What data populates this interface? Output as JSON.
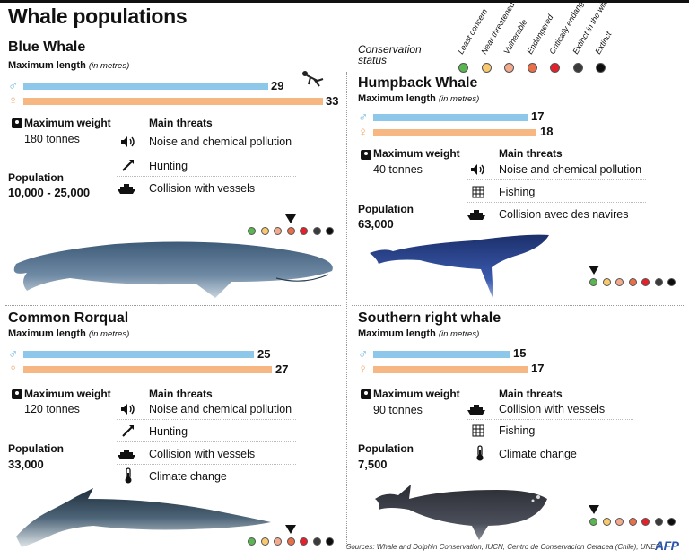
{
  "title": "Whale populations",
  "conservation": {
    "label": "Conservation status",
    "levels": [
      {
        "label": "Least concern",
        "color": "#5ab651"
      },
      {
        "label": "Near threatened",
        "color": "#f9c970"
      },
      {
        "label": "Vulnerable",
        "color": "#f3a98c"
      },
      {
        "label": "Endangered",
        "color": "#e96f4b"
      },
      {
        "label": "Critically endangered",
        "color": "#e5202a"
      },
      {
        "label": "Extinct in the wild",
        "color": "#3b3b3b"
      },
      {
        "label": "Extinct",
        "color": "#0d0d0d"
      }
    ]
  },
  "common": {
    "max_length": "Maximum length",
    "in_metres": "(in metres)",
    "max_weight": "Maximum weight",
    "main_threats": "Main threats",
    "population": "Population",
    "male_symbol": "♂",
    "female_symbol": "♀"
  },
  "whales": {
    "blue": {
      "name": "Blue Whale",
      "male_length": "29",
      "female_length": "33",
      "weight": "180 tonnes",
      "population": "10,000 - 25,000",
      "threats": [
        "Noise and chemical pollution",
        "Hunting",
        "Collision with vessels"
      ],
      "status_index": 3
    },
    "humpback": {
      "name": "Humpback Whale",
      "male_length": "17",
      "female_length": "18",
      "weight": "40 tonnes",
      "population": "63,000",
      "threats": [
        "Noise and chemical pollution",
        "Fishing",
        "Collision avec des navires"
      ],
      "status_index": 0
    },
    "rorqual": {
      "name": "Common Rorqual",
      "male_length": "25",
      "female_length": "27",
      "weight": "120 tonnes",
      "population": "33,000",
      "threats": [
        "Noise and chemical pollution",
        "Hunting",
        "Collision with vessels",
        "Climate change"
      ],
      "status_index": 3
    },
    "southern": {
      "name": "Southern right whale",
      "male_length": "15",
      "female_length": "17",
      "weight": "90 tonnes",
      "population": "7,500",
      "threats": [
        "Collision with vessels",
        "Fishing",
        "Climate change"
      ],
      "status_index": 0
    }
  },
  "sources": "Sources: Whale and Dolphin Conservation, IUCN, Centro de Conservacion Cetacea (Chile), UNEP",
  "credit": "AFP"
}
